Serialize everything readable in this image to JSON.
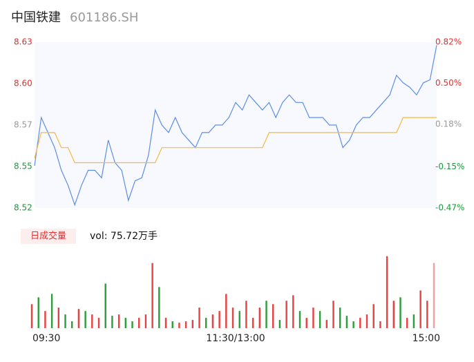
{
  "chart_data": {
    "type": "line",
    "title": "中国铁建",
    "subtitle": "601186.SH",
    "xlim": [
      0,
      240
    ],
    "xticks": [
      {
        "value": 0,
        "label": "09:30"
      },
      {
        "value": 120,
        "label": "11:30/13:00"
      },
      {
        "value": 240,
        "label": "15:00"
      }
    ],
    "ylim": [
      8.52,
      8.63
    ],
    "yticks": [
      {
        "value": 8.52,
        "label": "8.52"
      },
      {
        "value": 8.5475,
        "label": "8.55"
      },
      {
        "value": 8.575,
        "label": "8.57"
      },
      {
        "value": 8.6025,
        "label": "8.60"
      },
      {
        "value": 8.63,
        "label": "8.63"
      }
    ],
    "ytick_colors": [
      "#1a9a3a",
      "#1a9a3a",
      "#999999",
      "#e03030",
      "#e03030"
    ],
    "y2lim": [
      -0.47,
      0.82
    ],
    "y2ticks": [
      {
        "value": -0.47,
        "label": "-0.47%"
      },
      {
        "value": -0.15,
        "label": "-0.15%"
      },
      {
        "value": 0.18,
        "label": "0.18%"
      },
      {
        "value": 0.5,
        "label": "0.50%"
      },
      {
        "value": 0.82,
        "label": "0.82%"
      }
    ],
    "x": [
      0,
      4,
      8,
      12,
      16,
      20,
      24,
      28,
      32,
      36,
      40,
      44,
      48,
      52,
      56,
      60,
      64,
      68,
      72,
      76,
      80,
      84,
      88,
      92,
      96,
      100,
      104,
      108,
      112,
      116,
      120,
      124,
      128,
      132,
      136,
      140,
      144,
      148,
      152,
      156,
      160,
      164,
      168,
      172,
      176,
      180,
      184,
      188,
      192,
      196,
      200,
      204,
      208,
      212,
      216,
      220,
      224,
      228,
      232,
      236,
      240
    ],
    "series": [
      {
        "name": "price",
        "color": "#5b8de8",
        "values": [
          8.548,
          8.58,
          8.57,
          8.56,
          8.545,
          8.535,
          8.522,
          8.535,
          8.545,
          8.545,
          8.54,
          8.565,
          8.55,
          8.545,
          8.525,
          8.538,
          8.54,
          8.555,
          8.585,
          8.575,
          8.57,
          8.58,
          8.57,
          8.565,
          8.56,
          8.57,
          8.57,
          8.575,
          8.575,
          8.58,
          8.59,
          8.585,
          8.595,
          8.59,
          8.585,
          8.59,
          8.58,
          8.59,
          8.595,
          8.59,
          8.59,
          8.58,
          8.58,
          8.58,
          8.575,
          8.575,
          8.56,
          8.565,
          8.575,
          8.58,
          8.58,
          8.585,
          8.59,
          8.595,
          8.608,
          8.603,
          8.6,
          8.595,
          8.603,
          8.605,
          8.628
        ]
      },
      {
        "name": "average",
        "color": "#f5b942",
        "values": [
          8.553,
          8.57,
          8.57,
          8.57,
          8.56,
          8.56,
          8.55,
          8.55,
          8.55,
          8.55,
          8.55,
          8.55,
          8.55,
          8.55,
          8.55,
          8.55,
          8.55,
          8.55,
          8.55,
          8.56,
          8.56,
          8.56,
          8.56,
          8.56,
          8.56,
          8.56,
          8.56,
          8.56,
          8.56,
          8.56,
          8.56,
          8.56,
          8.56,
          8.56,
          8.56,
          8.57,
          8.57,
          8.57,
          8.57,
          8.57,
          8.57,
          8.57,
          8.57,
          8.57,
          8.57,
          8.57,
          8.57,
          8.57,
          8.57,
          8.57,
          8.57,
          8.57,
          8.57,
          8.57,
          8.57,
          8.58,
          8.58,
          8.58,
          8.58,
          8.58,
          8.58
        ]
      }
    ],
    "volume": {
      "legend": "日成交量",
      "label": "vol: 75.72万手",
      "ylim": [
        0,
        110
      ],
      "values": [
        35,
        45,
        25,
        50,
        30,
        20,
        10,
        28,
        25,
        20,
        15,
        65,
        18,
        20,
        15,
        10,
        15,
        20,
        95,
        60,
        15,
        10,
        8,
        10,
        12,
        30,
        15,
        20,
        25,
        50,
        30,
        25,
        40,
        15,
        30,
        40,
        35,
        12,
        40,
        48,
        25,
        15,
        30,
        25,
        12,
        40,
        30,
        18,
        10,
        15,
        20,
        35,
        10,
        105,
        40,
        45,
        15,
        20,
        55,
        40,
        95
      ],
      "colors": [
        "#e84040",
        "#2a9d3a",
        "#e84040",
        "#2a9d3a",
        "#e84040",
        "#2a9d3a",
        "#2a9d3a",
        "#e84040",
        "#2a9d3a",
        "#e84040",
        "#e84040",
        "#2a9d3a",
        "#2a9d3a",
        "#e84040",
        "#2a9d3a",
        "#2a9d3a",
        "#e84040",
        "#e84040",
        "#e84040",
        "#2a9d3a",
        "#e84040",
        "#2a9d3a",
        "#e84040",
        "#e84040",
        "#e84040",
        "#e84040",
        "#2a9d3a",
        "#e84040",
        "#e84040",
        "#e84040",
        "#e84040",
        "#2a9d3a",
        "#e84040",
        "#e84040",
        "#e84040",
        "#2a9d3a",
        "#e84040",
        "#2a9d3a",
        "#e84040",
        "#e84040",
        "#2a9d3a",
        "#e84040",
        "#e84040",
        "#2a9d3a",
        "#e84040",
        "#e84040",
        "#2a9d3a",
        "#2a9d3a",
        "#2a9d3a",
        "#e84040",
        "#e84040",
        "#e84040",
        "#e84040",
        "#e84040",
        "#e84040",
        "#2a9d3a",
        "#e84040",
        "#2a9d3a",
        "#e84040",
        "#e84040",
        "#f0a0a0"
      ]
    }
  }
}
